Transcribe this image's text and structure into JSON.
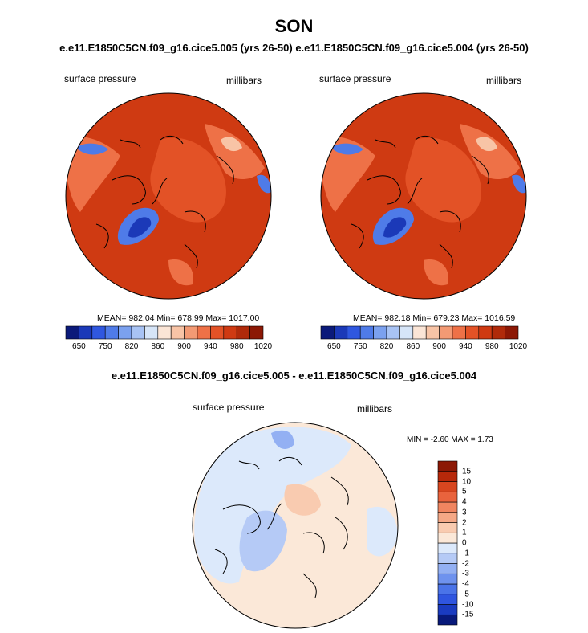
{
  "title": "SON",
  "panels": [
    {
      "case": "e.e11.E1850C5CN.f09_g16.cice5.005 (yrs 26-50)",
      "variable": "surface pressure",
      "units": "millibars",
      "stats": "MEAN= 982.04  Min= 678.99  Max= 1017.00"
    },
    {
      "case": "e.e11.E1850C5CN.f09_g16.cice5.004 (yrs 26-50)",
      "variable": "surface pressure",
      "units": "millibars",
      "stats": "MEAN= 982.18  Min= 679.23  Max= 1016.59"
    }
  ],
  "abs_colorbar": {
    "colors": [
      "#0b1a7a",
      "#1b39b8",
      "#2f57e0",
      "#4f7be8",
      "#7ba1ef",
      "#a8c3f4",
      "#d6e5f8",
      "#fbe5d6",
      "#f8c4a6",
      "#f39a74",
      "#ee7147",
      "#e35226",
      "#cf3a12",
      "#b02a0a",
      "#8c1805"
    ],
    "tick_labels": [
      "650",
      "750",
      "820",
      "860",
      "900",
      "940",
      "980",
      "1020"
    ]
  },
  "diff": {
    "title": "e.e11.E1850C5CN.f09_g16.cice5.005 - e.e11.E1850C5CN.f09_g16.cice5.004",
    "variable": "surface pressure",
    "units": "millibars",
    "minmax": "MIN =  -2.60 MAX =    1.73",
    "colorbar": {
      "colors_bottom_to_top": [
        "#08197a",
        "#1a3bc0",
        "#2f55e0",
        "#4a73e8",
        "#6e92ee",
        "#93b0f3",
        "#b5caf6",
        "#dce9fb",
        "#fbe8d8",
        "#f9cbb0",
        "#f5a886",
        "#f08560",
        "#e9633d",
        "#d8461f",
        "#b7280a",
        "#8c1805"
      ],
      "tick_labels_bottom_to_top": [
        "-15",
        "-10",
        "-5",
        "-4",
        "-3",
        "-2",
        "-1",
        "0",
        "1",
        "2",
        "3",
        "4",
        "5",
        "10",
        "15"
      ]
    }
  },
  "map_colors": {
    "land_high": "#cf3a12",
    "ocean_mid": "#e35226",
    "lighter": "#ee7147",
    "pale": "#f8c4a6",
    "greenland_low": "#1b39b8",
    "greenland_mid": "#4f7be8",
    "diff_pos": "#fbe8d8",
    "diff_pos2": "#f9cbb0",
    "diff_neg": "#dce9fb",
    "diff_neg2": "#b5caf6",
    "diff_neg3": "#93b0f3",
    "coast": "#000000"
  }
}
